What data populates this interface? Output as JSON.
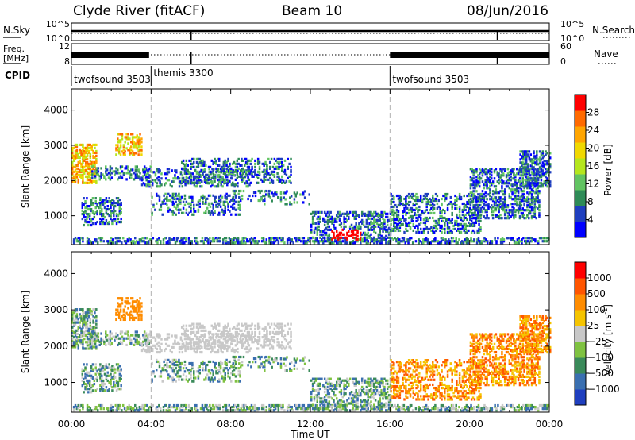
{
  "header": {
    "title": "Clyde River (fitACF)",
    "beam": "Beam 10",
    "date": "08/Jun/2016"
  },
  "chart_data": [
    {
      "type": "line",
      "panel": "noise",
      "ylabel_left": "N.Sky",
      "ylabel_right": "N.Search",
      "left_ticks": [
        "10^5",
        "10^0"
      ],
      "right_ticks": [
        "10^5",
        "10^0"
      ],
      "xlim": [
        0,
        24
      ],
      "spikes_at_hours": [
        6.0,
        21.4
      ]
    },
    {
      "type": "line",
      "panel": "frequency",
      "ylabel_left_top": "Freq.",
      "ylabel_left_bottom": "[MHz]",
      "ylabel_right": "Nave",
      "left_ticks": [
        "12",
        "8"
      ],
      "right_ticks": [
        "60",
        "0"
      ],
      "xlim": [
        0,
        24
      ],
      "active_intervals_hours": [
        [
          0,
          3.9
        ],
        [
          16.0,
          24
        ]
      ],
      "spikes_at_hours": [
        6.0,
        21.4
      ]
    },
    {
      "type": "table",
      "panel": "cpid",
      "label": "CPID",
      "segments": [
        {
          "name": "twofsound 3503",
          "start_hour": 0
        },
        {
          "name": "themis 3300",
          "start_hour": 4.0
        },
        {
          "name": "twofsound 3503",
          "start_hour": 16.0
        }
      ]
    },
    {
      "type": "heatmap",
      "panel": "power",
      "ylabel": "Slant Range [km]",
      "y_ticks": [
        1000,
        2000,
        3000,
        4000
      ],
      "ylim": [
        180,
        4600
      ],
      "xlim": [
        0,
        24
      ],
      "colorbar_label": "Power [dB]",
      "colorbar_ticks": [
        4,
        8,
        12,
        16,
        20,
        24,
        28
      ],
      "colorbar_range": [
        0,
        32
      ],
      "colormap": [
        "#0000ff",
        "#1f3fbf",
        "#2e8b57",
        "#62c462",
        "#b5e61d",
        "#f0d800",
        "#ffa500",
        "#ff6a00",
        "#ff0000"
      ]
    },
    {
      "type": "heatmap",
      "panel": "velocity",
      "ylabel": "Slant Range [km]",
      "y_ticks": [
        1000,
        2000,
        3000,
        4000
      ],
      "ylim": [
        180,
        4600
      ],
      "xlim": [
        0,
        24
      ],
      "colorbar_label": "Velocity",
      "colorbar_unit": "[m s",
      "colorbar_unit_sup": "-1",
      "colorbar_unit_end": "]",
      "colorbar_ticks": [
        "1000",
        "500",
        "100",
        "25",
        "−25",
        "−100",
        "−500",
        "−1000"
      ],
      "colormap": [
        "#1f3fbf",
        "#3a6fb0",
        "#3a8a5a",
        "#7fc241",
        "#c8c8c8",
        "#f5c400",
        "#ff8c00",
        "#ff5500",
        "#ff0000"
      ]
    }
  ],
  "x_axis": {
    "ticks": [
      "00:00",
      "04:00",
      "08:00",
      "12:00",
      "16:00",
      "20:00",
      "00:00"
    ],
    "label": "Time UT"
  }
}
